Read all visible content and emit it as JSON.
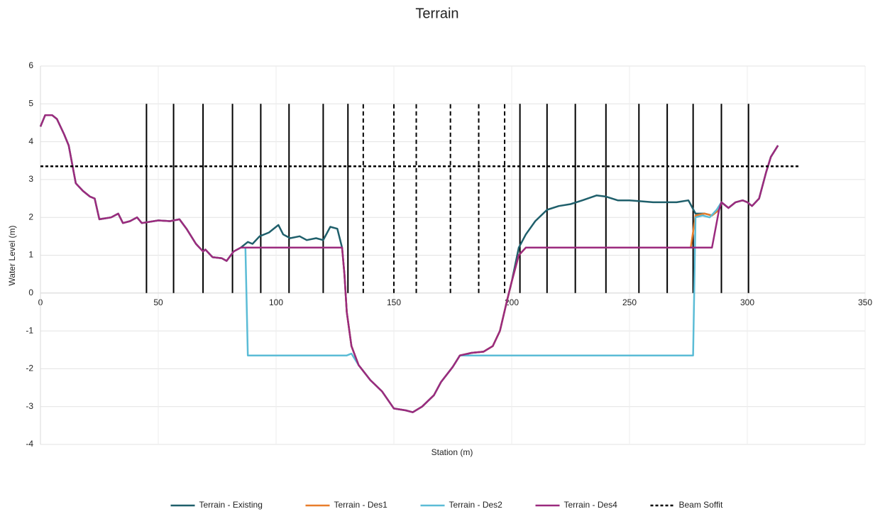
{
  "chart_data": {
    "type": "line",
    "title": "Terrain",
    "x_label": "Station (m)",
    "y_label": "Water Level (m)",
    "xlim": [
      0,
      350
    ],
    "xticks": [
      0,
      50,
      100,
      150,
      200,
      250,
      300,
      350
    ],
    "ylim": [
      -4,
      6
    ],
    "yticks": [
      -4,
      -3,
      -2,
      -1,
      0,
      1,
      2,
      3,
      4,
      5,
      6
    ],
    "grid": true,
    "legend": "bottom",
    "reference_lines": {
      "color": "#000000",
      "span": [
        0,
        5
      ],
      "solid": [
        45,
        56.5,
        69,
        81.5,
        93.5,
        105.5,
        120,
        130.5,
        203.5,
        215,
        227,
        240,
        254,
        266,
        277,
        289,
        300.5
      ],
      "dashed": [
        137,
        150,
        159.5,
        174,
        186,
        197
      ]
    },
    "series": [
      {
        "name": "Terrain - Existing",
        "color": "#1f5f6b",
        "dash": "solid",
        "x": [
          0,
          2,
          5,
          7,
          10,
          12,
          15,
          18,
          21,
          23,
          25,
          30,
          33,
          35,
          38,
          41,
          43,
          50,
          55,
          59,
          62,
          66,
          69,
          70,
          73,
          77,
          79,
          82,
          85,
          88,
          90,
          93,
          97,
          100,
          101,
          103,
          106,
          110,
          113,
          117,
          120,
          123,
          126,
          128,
          129,
          130,
          132,
          135,
          140,
          145,
          150,
          155,
          158,
          162,
          167,
          170,
          175,
          178,
          183,
          188,
          192,
          195,
          198,
          200,
          203,
          206,
          210,
          215,
          220,
          225,
          230,
          236,
          240,
          245,
          250,
          260,
          270,
          275,
          278,
          282,
          285,
          288,
          289,
          292,
          295,
          298,
          300,
          302,
          305,
          308,
          310,
          313
        ],
        "values": [
          4.4,
          4.7,
          4.7,
          4.6,
          4.2,
          3.9,
          2.9,
          2.7,
          2.55,
          2.5,
          1.95,
          2.0,
          2.1,
          1.85,
          1.9,
          2.0,
          1.85,
          1.92,
          1.9,
          1.95,
          1.7,
          1.3,
          1.1,
          1.15,
          0.95,
          0.92,
          0.85,
          1.1,
          1.2,
          1.35,
          1.3,
          1.5,
          1.6,
          1.75,
          1.8,
          1.55,
          1.45,
          1.5,
          1.4,
          1.45,
          1.4,
          1.75,
          1.7,
          1.2,
          0.5,
          -0.5,
          -1.4,
          -1.9,
          -2.3,
          -2.6,
          -3.05,
          -3.1,
          -3.15,
          -3.0,
          -2.7,
          -2.35,
          -1.95,
          -1.65,
          -1.58,
          -1.55,
          -1.4,
          -1.0,
          -0.2,
          0.3,
          1.2,
          1.55,
          1.9,
          2.2,
          2.3,
          2.35,
          2.45,
          2.58,
          2.55,
          2.45,
          2.45,
          2.4,
          2.4,
          2.45,
          2.1,
          2.1,
          2.05,
          2.2,
          2.4,
          2.25,
          2.4,
          2.45,
          2.4,
          2.3,
          2.5,
          3.2,
          3.6,
          3.9
        ]
      },
      {
        "name": "Terrain - Des1",
        "color": "#e87d2b",
        "dash": "solid",
        "x": [
          0,
          2,
          5,
          7,
          10,
          12,
          15,
          18,
          21,
          23,
          25,
          30,
          33,
          35,
          38,
          41,
          43,
          50,
          55,
          59,
          62,
          66,
          69,
          70,
          73,
          77,
          79,
          82,
          85,
          128,
          129,
          130,
          132,
          135,
          140,
          145,
          150,
          155,
          158,
          162,
          167,
          170,
          175,
          178,
          183,
          188,
          192,
          195,
          198,
          200,
          203,
          206,
          276,
          278,
          282,
          285,
          288,
          289,
          292,
          295,
          298,
          300,
          302,
          305,
          308,
          310,
          313
        ],
        "values": [
          4.4,
          4.7,
          4.7,
          4.6,
          4.2,
          3.9,
          2.9,
          2.7,
          2.55,
          2.5,
          1.95,
          2.0,
          2.1,
          1.85,
          1.9,
          2.0,
          1.85,
          1.92,
          1.9,
          1.95,
          1.7,
          1.3,
          1.1,
          1.15,
          0.95,
          0.92,
          0.85,
          1.1,
          1.2,
          1.2,
          0.5,
          -0.5,
          -1.4,
          -1.9,
          -2.3,
          -2.6,
          -3.05,
          -3.1,
          -3.15,
          -3.0,
          -2.7,
          -2.35,
          -1.95,
          -1.65,
          -1.58,
          -1.55,
          -1.4,
          -1.0,
          -0.2,
          0.3,
          1.0,
          1.2,
          1.2,
          2.05,
          2.1,
          2.05,
          2.2,
          2.4,
          2.25,
          2.4,
          2.45,
          2.4,
          2.3,
          2.5,
          3.2,
          3.6,
          3.9
        ]
      },
      {
        "name": "Terrain - Des2",
        "color": "#5bbcd6",
        "dash": "solid",
        "x": [
          0,
          2,
          5,
          7,
          10,
          12,
          15,
          18,
          21,
          23,
          25,
          30,
          33,
          35,
          38,
          41,
          43,
          50,
          55,
          59,
          62,
          66,
          69,
          70,
          73,
          77,
          79,
          82,
          85,
          87,
          88,
          130,
          132,
          135,
          140,
          145,
          150,
          155,
          158,
          162,
          167,
          170,
          175,
          178,
          277,
          278,
          281,
          284,
          287,
          289,
          292,
          295,
          298,
          300,
          302,
          305,
          308,
          310,
          313
        ],
        "values": [
          4.4,
          4.7,
          4.7,
          4.6,
          4.2,
          3.9,
          2.9,
          2.7,
          2.55,
          2.5,
          1.95,
          2.0,
          2.1,
          1.85,
          1.9,
          2.0,
          1.85,
          1.92,
          1.9,
          1.95,
          1.7,
          1.3,
          1.1,
          1.15,
          0.95,
          0.92,
          0.85,
          1.1,
          1.2,
          1.2,
          -1.65,
          -1.65,
          -1.6,
          -1.9,
          -2.3,
          -2.6,
          -3.05,
          -3.1,
          -3.15,
          -3.0,
          -2.7,
          -2.35,
          -1.95,
          -1.65,
          -1.65,
          2.0,
          2.05,
          2.0,
          2.2,
          2.4,
          2.25,
          2.4,
          2.45,
          2.4,
          2.3,
          2.5,
          3.2,
          3.6,
          3.9
        ]
      },
      {
        "name": "Terrain - Des4",
        "color": "#9b2a7e",
        "dash": "solid",
        "x": [
          0,
          2,
          5,
          7,
          10,
          12,
          15,
          18,
          21,
          23,
          25,
          30,
          33,
          35,
          38,
          41,
          43,
          50,
          55,
          59,
          62,
          66,
          69,
          70,
          73,
          77,
          79,
          82,
          85,
          128,
          129,
          130,
          132,
          135,
          140,
          145,
          150,
          155,
          158,
          162,
          167,
          170,
          175,
          178,
          183,
          188,
          192,
          195,
          198,
          200,
          203,
          206,
          285,
          288,
          289,
          292,
          295,
          298,
          300,
          302,
          305,
          308,
          310,
          313
        ],
        "values": [
          4.4,
          4.7,
          4.7,
          4.6,
          4.2,
          3.9,
          2.9,
          2.7,
          2.55,
          2.5,
          1.95,
          2.0,
          2.1,
          1.85,
          1.9,
          2.0,
          1.85,
          1.92,
          1.9,
          1.95,
          1.7,
          1.3,
          1.1,
          1.15,
          0.95,
          0.92,
          0.85,
          1.1,
          1.2,
          1.2,
          0.5,
          -0.5,
          -1.4,
          -1.9,
          -2.3,
          -2.6,
          -3.05,
          -3.1,
          -3.15,
          -3.0,
          -2.7,
          -2.35,
          -1.95,
          -1.65,
          -1.58,
          -1.55,
          -1.4,
          -1.0,
          -0.2,
          0.3,
          1.0,
          1.2,
          1.2,
          2.2,
          2.4,
          2.25,
          2.4,
          2.45,
          2.4,
          2.3,
          2.5,
          3.2,
          3.6,
          3.9
        ]
      },
      {
        "name": "Beam Soffit",
        "color": "#000000",
        "dash": "dotted",
        "x": [
          0,
          322
        ],
        "values": [
          3.35,
          3.35
        ]
      }
    ]
  }
}
